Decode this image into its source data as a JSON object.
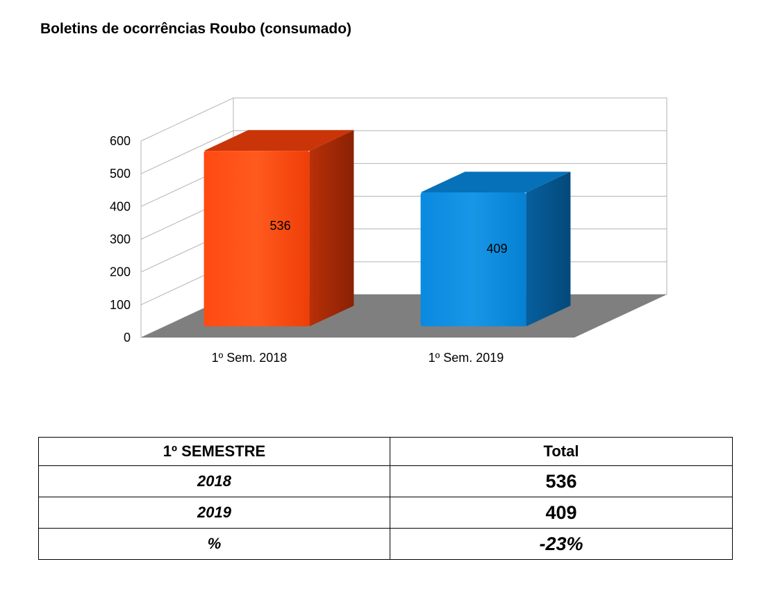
{
  "title": "Boletins de ocorrências Roubo (consumado)",
  "chart_data": {
    "type": "bar",
    "title": "Boletins de ocorrências Roubo (consumado)",
    "categories": [
      "1º Sem. 2018",
      "1º Sem. 2019"
    ],
    "values": [
      536,
      409
    ],
    "data_labels": [
      "536",
      "409"
    ],
    "colors": [
      "#ff4510",
      "#0588db"
    ],
    "ylim": [
      0,
      600
    ],
    "yticks": [
      0,
      100,
      200,
      300,
      400,
      500,
      600
    ],
    "grid": true,
    "style": "3d"
  },
  "table": {
    "headers": [
      "1º SEMESTRE",
      "Total"
    ],
    "rows": [
      {
        "label": "2018",
        "value": "536"
      },
      {
        "label": "2019",
        "value": "409"
      },
      {
        "label": "%",
        "value": "-23%"
      }
    ]
  }
}
